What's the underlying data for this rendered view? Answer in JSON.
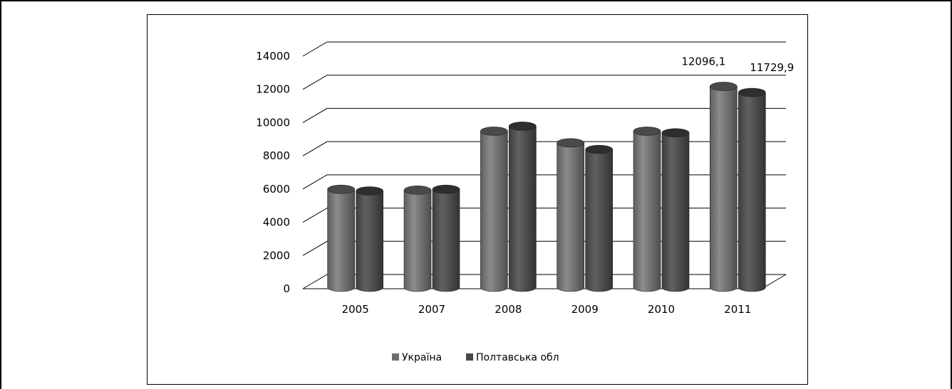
{
  "chart_data": {
    "type": "bar",
    "title": "",
    "xlabel": "",
    "ylabel": "",
    "categories": [
      "2005",
      "2007",
      "2008",
      "2009",
      "2010",
      "2011"
    ],
    "series": [
      {
        "name": "Україна",
        "values": [
          5900,
          5850,
          9400,
          8700,
          9400,
          12096.1
        ],
        "color": "#6e6e6e"
      },
      {
        "name": "Полтавська обл",
        "values": [
          5800,
          5900,
          9700,
          8300,
          9300,
          11729.9
        ],
        "color": "#474747"
      }
    ],
    "ylim": [
      0,
      14000
    ],
    "yticks": [
      "0",
      "2000",
      "4000",
      "6000",
      "8000",
      "10000",
      "12000",
      "14000"
    ],
    "data_labels": [
      {
        "series": 0,
        "category": 5,
        "text": "12096,1"
      },
      {
        "series": 1,
        "category": 5,
        "text": "11729,9"
      }
    ],
    "grid": true,
    "legend_position": "bottom",
    "style": "3d-cylinder"
  }
}
